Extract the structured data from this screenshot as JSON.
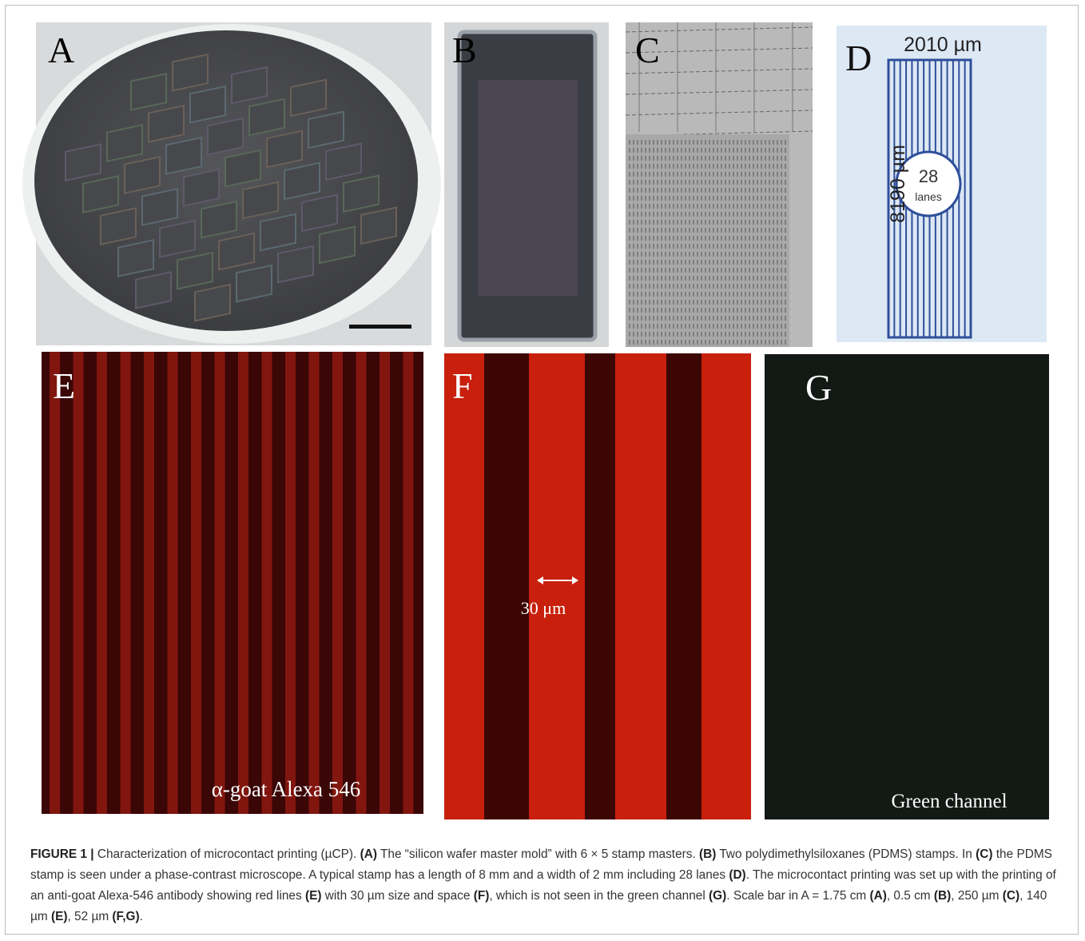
{
  "figure": {
    "panels": [
      {
        "letter": "A"
      },
      {
        "letter": "B"
      },
      {
        "letter": "C"
      },
      {
        "letter": "D",
        "width_label": "2010 µm",
        "length_label": "8190 µm",
        "count": "28",
        "count_unit": "lanes"
      },
      {
        "letter": "E",
        "label": "α-goat Alexa 546"
      },
      {
        "letter": "F",
        "label": "30 μm"
      },
      {
        "letter": "G",
        "label": "Green channel"
      }
    ],
    "caption": [
      {
        "text": "FIGURE 1 |",
        "bold": true
      },
      {
        "text": " Characterization of microcontact printing (µCP). "
      },
      {
        "text": "(A)",
        "bold": true
      },
      {
        "text": " The “silicon wafer master mold” with 6 × 5 stamp masters. "
      },
      {
        "text": "(B)",
        "bold": true
      },
      {
        "text": " Two polydimethylsiloxanes (PDMS) stamps. In "
      },
      {
        "text": "(C)",
        "bold": true
      },
      {
        "text": " the PDMS stamp is seen under a phase-contrast microscope. A typical stamp has a length of 8 mm and a width of 2 mm including 28 lanes "
      },
      {
        "text": "(D)",
        "bold": true
      },
      {
        "text": ". The microcontact printing was set up with the printing of an anti-goat Alexa-546 antibody showing red lines "
      },
      {
        "text": "(E)",
        "bold": true
      },
      {
        "text": " with 30 µm size and space "
      },
      {
        "text": "(F)",
        "bold": true
      },
      {
        "text": ", which is not seen in the green channel "
      },
      {
        "text": "(G)",
        "bold": true
      },
      {
        "text": ". Scale bar in A = 1.75 cm "
      },
      {
        "text": "(A)",
        "bold": true
      },
      {
        "text": ", 0.5 cm "
      },
      {
        "text": "(B)",
        "bold": true
      },
      {
        "text": ", 250 µm "
      },
      {
        "text": "(C)",
        "bold": true
      },
      {
        "text": ", 140 µm "
      },
      {
        "text": "(E)",
        "bold": true
      },
      {
        "text": ", 52 µm "
      },
      {
        "text": "(F,G)",
        "bold": true
      },
      {
        "text": "."
      }
    ]
  }
}
